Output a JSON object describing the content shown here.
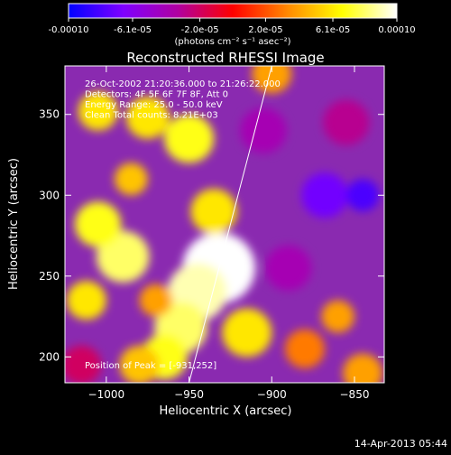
{
  "colorbar": {
    "tick_labels": [
      "-0.00010",
      "-6.1e-05",
      "-2.0e-05",
      "2.0e-05",
      "6.1e-05",
      "0.00010"
    ],
    "tick_values": [
      -0.0001,
      -6.1e-05,
      -2e-05,
      2e-05,
      6.1e-05,
      0.0001
    ],
    "range": [
      -0.0001,
      0.0001
    ],
    "unit_label": "(photons cm⁻² s⁻¹ asec⁻²)",
    "colors": [
      "#0000ff",
      "#7f00ff",
      "#b000a0",
      "#ff0000",
      "#ff8800",
      "#ffff00",
      "#ffffff"
    ]
  },
  "chart_data": {
    "type": "heatmap",
    "title": "Reconstructed RHESSI Image",
    "xlabel": "Heliocentric X (arcsec)",
    "ylabel": "Heliocentric Y (arcsec)",
    "xlim": [
      -1025,
      -832
    ],
    "ylim": [
      184,
      380
    ],
    "x_ticks": [
      -1000,
      -950,
      -900,
      -850
    ],
    "y_ticks": [
      200,
      250,
      300,
      350
    ],
    "x_tick_labels": [
      "−1000",
      "−950",
      "−900",
      "−850"
    ],
    "y_tick_labels": [
      "200",
      "250",
      "300",
      "350"
    ],
    "annotations": [
      "26-Oct-2002 21:20:36.000 to 21:26:22.000",
      "Detectors: 4F 5F 6F 7F 8F, Att 0",
      "Energy Range: 25.0 - 50.0 keV",
      "Clean     Total counts: 8.21E+03"
    ],
    "peak_label": "Position of Peak = [-931,252]",
    "peak": [
      -931,
      252
    ],
    "limb_line": [
      [
        -950,
        184
      ],
      [
        -900,
        380
      ]
    ],
    "blobs": [
      {
        "x": -932,
        "y": 255,
        "r": 22,
        "v": 0.0001
      },
      {
        "x": -945,
        "y": 240,
        "r": 18,
        "v": 9e-05
      },
      {
        "x": -955,
        "y": 218,
        "r": 16,
        "v": 8e-05
      },
      {
        "x": -965,
        "y": 200,
        "r": 14,
        "v": 7e-05
      },
      {
        "x": -990,
        "y": 262,
        "r": 16,
        "v": 8e-05
      },
      {
        "x": -1005,
        "y": 282,
        "r": 14,
        "v": 7e-05
      },
      {
        "x": -1012,
        "y": 235,
        "r": 12,
        "v": 6e-05
      },
      {
        "x": -950,
        "y": 335,
        "r": 15,
        "v": 7e-05
      },
      {
        "x": -975,
        "y": 348,
        "r": 13,
        "v": 6e-05
      },
      {
        "x": -1005,
        "y": 352,
        "r": 12,
        "v": 6e-05
      },
      {
        "x": -935,
        "y": 290,
        "r": 14,
        "v": 6e-05
      },
      {
        "x": -915,
        "y": 215,
        "r": 15,
        "v": 6e-05
      },
      {
        "x": -980,
        "y": 195,
        "r": 12,
        "v": 5e-05
      },
      {
        "x": -855,
        "y": 345,
        "r": 14,
        "v": -3e-05
      },
      {
        "x": -868,
        "y": 300,
        "r": 14,
        "v": -7e-05
      },
      {
        "x": -845,
        "y": 300,
        "r": 10,
        "v": -8e-05
      },
      {
        "x": -890,
        "y": 255,
        "r": 14,
        "v": -4e-05
      },
      {
        "x": -905,
        "y": 340,
        "r": 14,
        "v": -4e-05
      },
      {
        "x": -880,
        "y": 205,
        "r": 12,
        "v": 3e-05
      },
      {
        "x": -860,
        "y": 225,
        "r": 10,
        "v": 4e-05
      },
      {
        "x": -845,
        "y": 190,
        "r": 12,
        "v": 4e-05
      },
      {
        "x": -900,
        "y": 375,
        "r": 12,
        "v": 4e-05
      },
      {
        "x": -1015,
        "y": 195,
        "r": 12,
        "v": -2e-05
      },
      {
        "x": -985,
        "y": 310,
        "r": 10,
        "v": 5e-05
      },
      {
        "x": -970,
        "y": 235,
        "r": 10,
        "v": 4e-05
      }
    ]
  },
  "footer": {
    "timestamp": "14-Apr-2013 05:44"
  }
}
